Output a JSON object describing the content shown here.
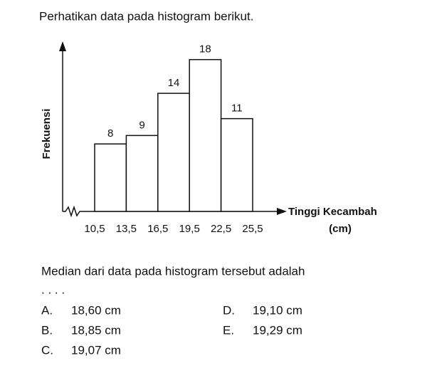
{
  "question": "Perhatikan data pada histogram berikut.",
  "chart_data": {
    "type": "histogram",
    "ylabel": "Frekuensi",
    "xlabel": [
      "Tinggi Kecambah",
      "(cm)"
    ],
    "bins": [
      10.5,
      13.5,
      16.5,
      19.5,
      22.5,
      25.5
    ],
    "values": [
      8,
      9,
      14,
      18,
      11
    ],
    "xticks": [
      {
        "value": 10.5,
        "label": "10,5"
      },
      {
        "value": 13.5,
        "label": "13,5"
      },
      {
        "value": 16.5,
        "label": "16,5"
      },
      {
        "value": 19.5,
        "label": "19,5"
      },
      {
        "value": 22.5,
        "label": "22,5"
      },
      {
        "value": 25.5,
        "label": "25,5"
      }
    ],
    "ylim": [
      0,
      20
    ],
    "color": "#ffffff"
  },
  "prompt": "Median dari data pada histogram tersebut adalah",
  "ellipsis": ". . . .",
  "options": [
    {
      "letter": "A.",
      "text": "18,60 cm"
    },
    {
      "letter": "B.",
      "text": "18,85 cm"
    },
    {
      "letter": "C.",
      "text": "19,07 cm"
    },
    {
      "letter": "D.",
      "text": "19,10 cm"
    },
    {
      "letter": "E.",
      "text": "19,29 cm"
    }
  ]
}
